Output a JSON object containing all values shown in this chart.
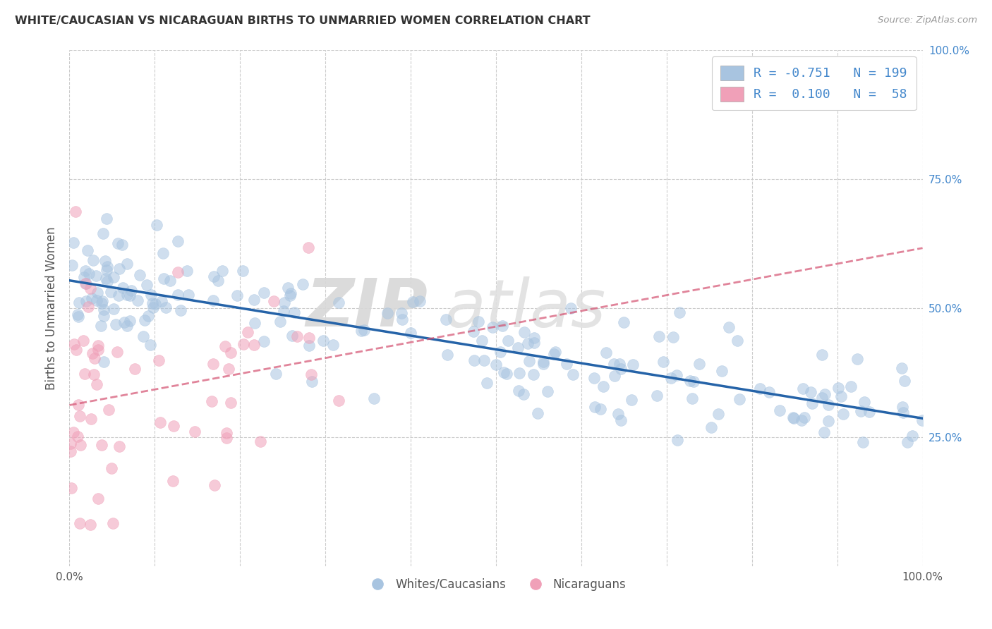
{
  "title": "WHITE/CAUCASIAN VS NICARAGUAN BIRTHS TO UNMARRIED WOMEN CORRELATION CHART",
  "source": "Source: ZipAtlas.com",
  "ylabel": "Births to Unmarried Women",
  "blue_color": "#a8c4e0",
  "blue_line_color": "#2563a8",
  "pink_color": "#f0a0b8",
  "pink_line_color": "#d45070",
  "watermark_zip": "ZIP",
  "watermark_atlas": "atlas",
  "background_color": "#ffffff",
  "grid_color": "#cccccc",
  "ytick_color": "#4488cc",
  "legend_upper_blue": "R = -0.751   N = 199",
  "legend_upper_pink": "R =  0.100   N =  58",
  "legend_bottom_blue": "Whites/Caucasians",
  "legend_bottom_pink": "Nicaraguans"
}
